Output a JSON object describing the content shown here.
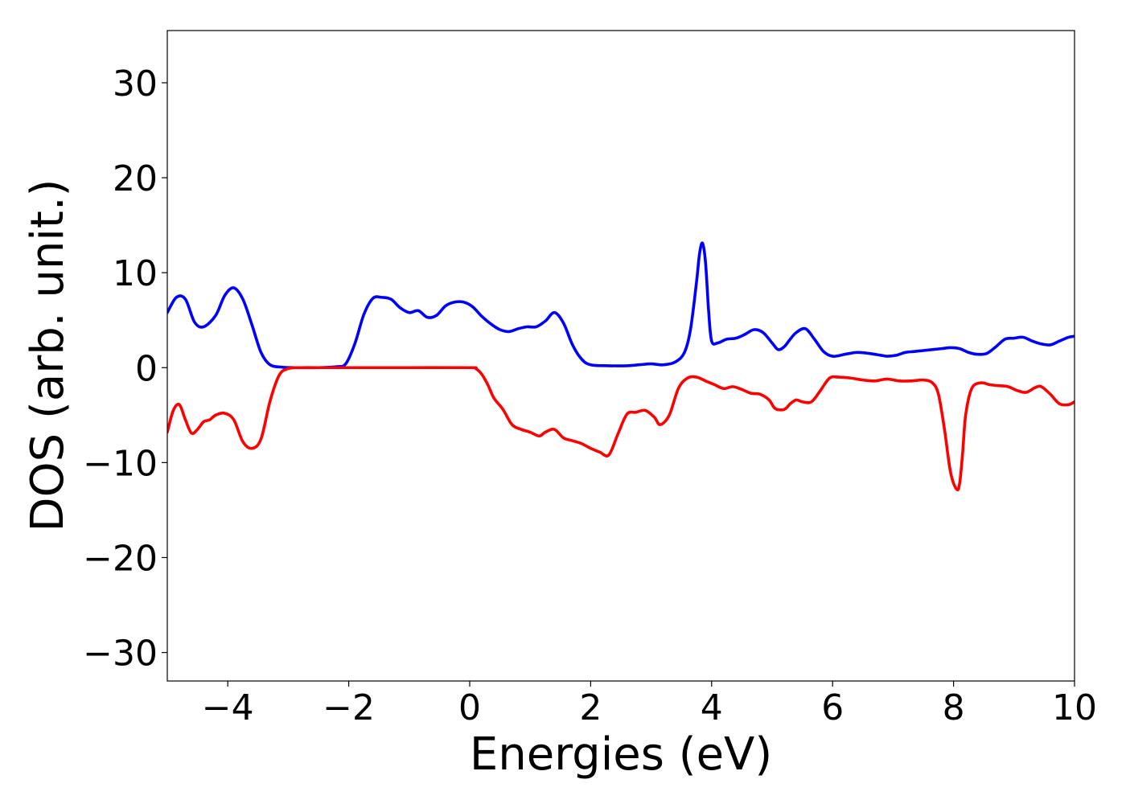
{
  "chart_data": {
    "type": "line",
    "xlabel": "Energies (eV)",
    "ylabel": "DOS (arb. unit.)",
    "xlim": [
      -5,
      10
    ],
    "ylim": [
      -33,
      35.5
    ],
    "xticks": [
      -4,
      -2,
      0,
      2,
      4,
      6,
      8,
      10
    ],
    "xtick_labels": [
      "−4",
      "−2",
      "0",
      "2",
      "4",
      "6",
      "8",
      "10"
    ],
    "yticks": [
      -30,
      -20,
      -10,
      0,
      10,
      20,
      30
    ],
    "ytick_labels": [
      "−30",
      "−20",
      "−10",
      "0",
      "10",
      "20",
      "30"
    ],
    "grid": false,
    "series": [
      {
        "color": "#0000ff",
        "x": [
          -5.0,
          -4.85,
          -4.7,
          -4.55,
          -4.4,
          -4.2,
          -4.05,
          -3.9,
          -3.75,
          -3.6,
          -3.45,
          -3.3,
          -3.1,
          -2.9,
          -2.5,
          -2.2,
          -2.05,
          -1.9,
          -1.75,
          -1.6,
          -1.45,
          -1.3,
          -1.15,
          -1.0,
          -0.85,
          -0.7,
          -0.55,
          -0.4,
          -0.25,
          -0.1,
          0.05,
          0.2,
          0.35,
          0.5,
          0.65,
          0.8,
          0.95,
          1.1,
          1.25,
          1.4,
          1.55,
          1.7,
          1.85,
          2.0,
          2.3,
          2.6,
          2.8,
          3.0,
          3.2,
          3.4,
          3.55,
          3.65,
          3.75,
          3.8,
          3.85,
          3.9,
          3.95,
          4.0,
          4.1,
          4.25,
          4.4,
          4.55,
          4.7,
          4.85,
          5.0,
          5.1,
          5.2,
          5.3,
          5.4,
          5.55,
          5.7,
          5.85,
          6.0,
          6.2,
          6.4,
          6.6,
          6.8,
          6.9,
          7.05,
          7.2,
          7.35,
          7.5,
          7.65,
          7.8,
          7.95,
          8.1,
          8.25,
          8.4,
          8.55,
          8.7,
          8.85,
          9.0,
          9.15,
          9.3,
          9.45,
          9.6,
          9.75,
          9.9,
          10.0
        ],
        "y": [
          5.8,
          7.4,
          7.2,
          4.8,
          4.3,
          5.5,
          7.6,
          8.4,
          7.2,
          4.5,
          1.6,
          0.3,
          0.05,
          0.0,
          0.0,
          0.1,
          0.4,
          2.5,
          5.6,
          7.3,
          7.4,
          7.2,
          6.3,
          5.8,
          6.0,
          5.3,
          5.5,
          6.5,
          6.9,
          6.9,
          6.4,
          5.4,
          4.6,
          4.0,
          3.8,
          4.1,
          4.3,
          4.3,
          4.9,
          5.8,
          4.7,
          2.4,
          0.9,
          0.3,
          0.2,
          0.2,
          0.3,
          0.4,
          0.3,
          0.6,
          1.6,
          4.0,
          9.0,
          12.0,
          13.1,
          11.0,
          6.0,
          2.8,
          2.6,
          3.0,
          3.1,
          3.5,
          4.0,
          3.7,
          2.6,
          1.9,
          2.2,
          3.0,
          3.7,
          4.1,
          3.0,
          1.7,
          1.2,
          1.4,
          1.6,
          1.5,
          1.3,
          1.2,
          1.3,
          1.6,
          1.7,
          1.8,
          1.9,
          2.0,
          2.1,
          2.0,
          1.6,
          1.4,
          1.5,
          2.2,
          3.0,
          3.1,
          3.2,
          2.8,
          2.5,
          2.4,
          2.8,
          3.2,
          3.3
        ]
      },
      {
        "color": "#ff0000",
        "x": [
          -5.0,
          -4.9,
          -4.8,
          -4.7,
          -4.6,
          -4.5,
          -4.4,
          -4.3,
          -4.2,
          -4.05,
          -3.9,
          -3.75,
          -3.6,
          -3.45,
          -3.3,
          -3.15,
          -3.0,
          -2.8,
          -2.5,
          -2.0,
          -1.0,
          0.0,
          0.1,
          0.2,
          0.3,
          0.4,
          0.55,
          0.7,
          0.85,
          1.0,
          1.15,
          1.25,
          1.4,
          1.55,
          1.7,
          1.85,
          2.0,
          2.15,
          2.3,
          2.45,
          2.6,
          2.75,
          2.9,
          3.05,
          3.15,
          3.3,
          3.45,
          3.6,
          3.75,
          3.9,
          4.05,
          4.2,
          4.35,
          4.5,
          4.65,
          4.8,
          4.95,
          5.05,
          5.2,
          5.3,
          5.4,
          5.5,
          5.65,
          5.8,
          5.95,
          6.1,
          6.3,
          6.5,
          6.7,
          6.9,
          7.1,
          7.3,
          7.5,
          7.65,
          7.75,
          7.85,
          7.95,
          8.05,
          8.1,
          8.15,
          8.2,
          8.3,
          8.45,
          8.6,
          8.75,
          8.9,
          9.05,
          9.2,
          9.35,
          9.45,
          9.6,
          9.75,
          9.9,
          10.0
        ],
        "y": [
          -6.8,
          -4.5,
          -3.9,
          -5.5,
          -6.9,
          -6.5,
          -5.7,
          -5.5,
          -5.0,
          -4.8,
          -5.5,
          -7.8,
          -8.5,
          -7.5,
          -3.5,
          -0.8,
          -0.1,
          0.0,
          0.0,
          0.0,
          0.0,
          0.0,
          -0.1,
          -0.7,
          -1.8,
          -3.2,
          -4.4,
          -6.0,
          -6.5,
          -6.8,
          -7.2,
          -6.8,
          -6.5,
          -7.4,
          -7.7,
          -8.0,
          -8.5,
          -8.9,
          -9.2,
          -7.0,
          -4.9,
          -4.7,
          -4.5,
          -5.2,
          -6.0,
          -5.0,
          -2.2,
          -1.1,
          -1.0,
          -1.4,
          -1.8,
          -2.2,
          -2.0,
          -2.3,
          -2.7,
          -2.8,
          -3.4,
          -4.3,
          -4.4,
          -3.8,
          -3.4,
          -3.6,
          -3.6,
          -2.4,
          -1.1,
          -1.0,
          -1.1,
          -1.3,
          -1.4,
          -1.2,
          -1.4,
          -1.4,
          -1.3,
          -1.6,
          -2.8,
          -6.5,
          -11.0,
          -12.8,
          -12.2,
          -9.0,
          -5.0,
          -2.2,
          -1.6,
          -1.8,
          -1.9,
          -2.0,
          -2.4,
          -2.6,
          -2.1,
          -2.0,
          -2.8,
          -3.8,
          -3.9,
          -3.6
        ]
      }
    ]
  }
}
